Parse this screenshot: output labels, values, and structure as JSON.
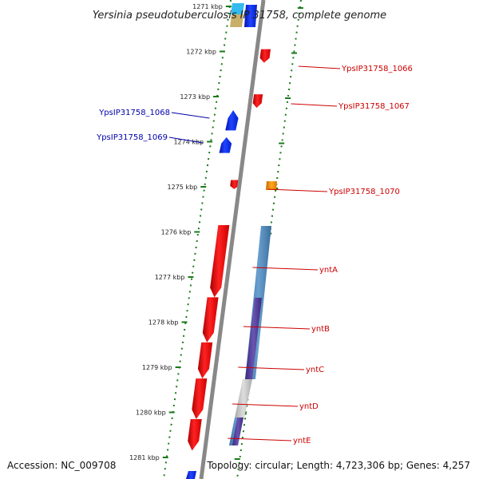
{
  "title": "Yersinia pseudotuberculosis IP 31758, complete genome",
  "footer": {
    "accession": "Accession: NC_009708",
    "topology": "Topology: circular; Length: 4,723,306 bp; Genes: 4,257"
  },
  "colors": {
    "forward_gene": "#ee1111",
    "reverse_gene": "#1133ee",
    "misc_gene": "#ff8800",
    "forward_label": "#cc0000",
    "reverse_label": "#0000aa",
    "backbone": "#888888",
    "ticks": "#1a7a1a"
  },
  "ticks": [
    {
      "label": "1271 kbp",
      "kbp": 1271
    },
    {
      "label": "1272 kbp",
      "kbp": 1272
    },
    {
      "label": "1273 kbp",
      "kbp": 1273
    },
    {
      "label": "1274 kbp",
      "kbp": 1274
    },
    {
      "label": "1275 kbp",
      "kbp": 1275
    },
    {
      "label": "1276 kbp",
      "kbp": 1276
    },
    {
      "label": "1277 kbp",
      "kbp": 1277
    },
    {
      "label": "1278 kbp",
      "kbp": 1278
    },
    {
      "label": "1279 kbp",
      "kbp": 1279
    },
    {
      "label": "1280 kbp",
      "kbp": 1280
    },
    {
      "label": "1281 kbp",
      "kbp": 1281
    }
  ],
  "genes_forward": [
    {
      "label": "YpsIP31758_1066",
      "start_kbp": 1271.95,
      "end_kbp": 1272.25
    },
    {
      "label": "YpsIP31758_1067",
      "start_kbp": 1272.95,
      "end_kbp": 1273.25
    },
    {
      "label": "YpsIP31758_1070",
      "start_kbp": 1274.85,
      "end_kbp": 1275.05
    },
    {
      "label": "yntA",
      "start_kbp": 1275.85,
      "end_kbp": 1277.45
    },
    {
      "label": "yntB",
      "start_kbp": 1277.45,
      "end_kbp": 1278.45
    },
    {
      "label": "yntC",
      "start_kbp": 1278.45,
      "end_kbp": 1279.25
    },
    {
      "label": "yntD",
      "start_kbp": 1279.25,
      "end_kbp": 1280.15
    },
    {
      "label": "yntE",
      "start_kbp": 1280.15,
      "end_kbp": 1280.85
    }
  ],
  "genes_reverse": [
    {
      "label": "YpsIP31758_1068",
      "start_kbp": 1273.3,
      "end_kbp": 1273.75
    },
    {
      "label": "YpsIP31758_1069",
      "start_kbp": 1273.9,
      "end_kbp": 1274.25
    }
  ]
}
